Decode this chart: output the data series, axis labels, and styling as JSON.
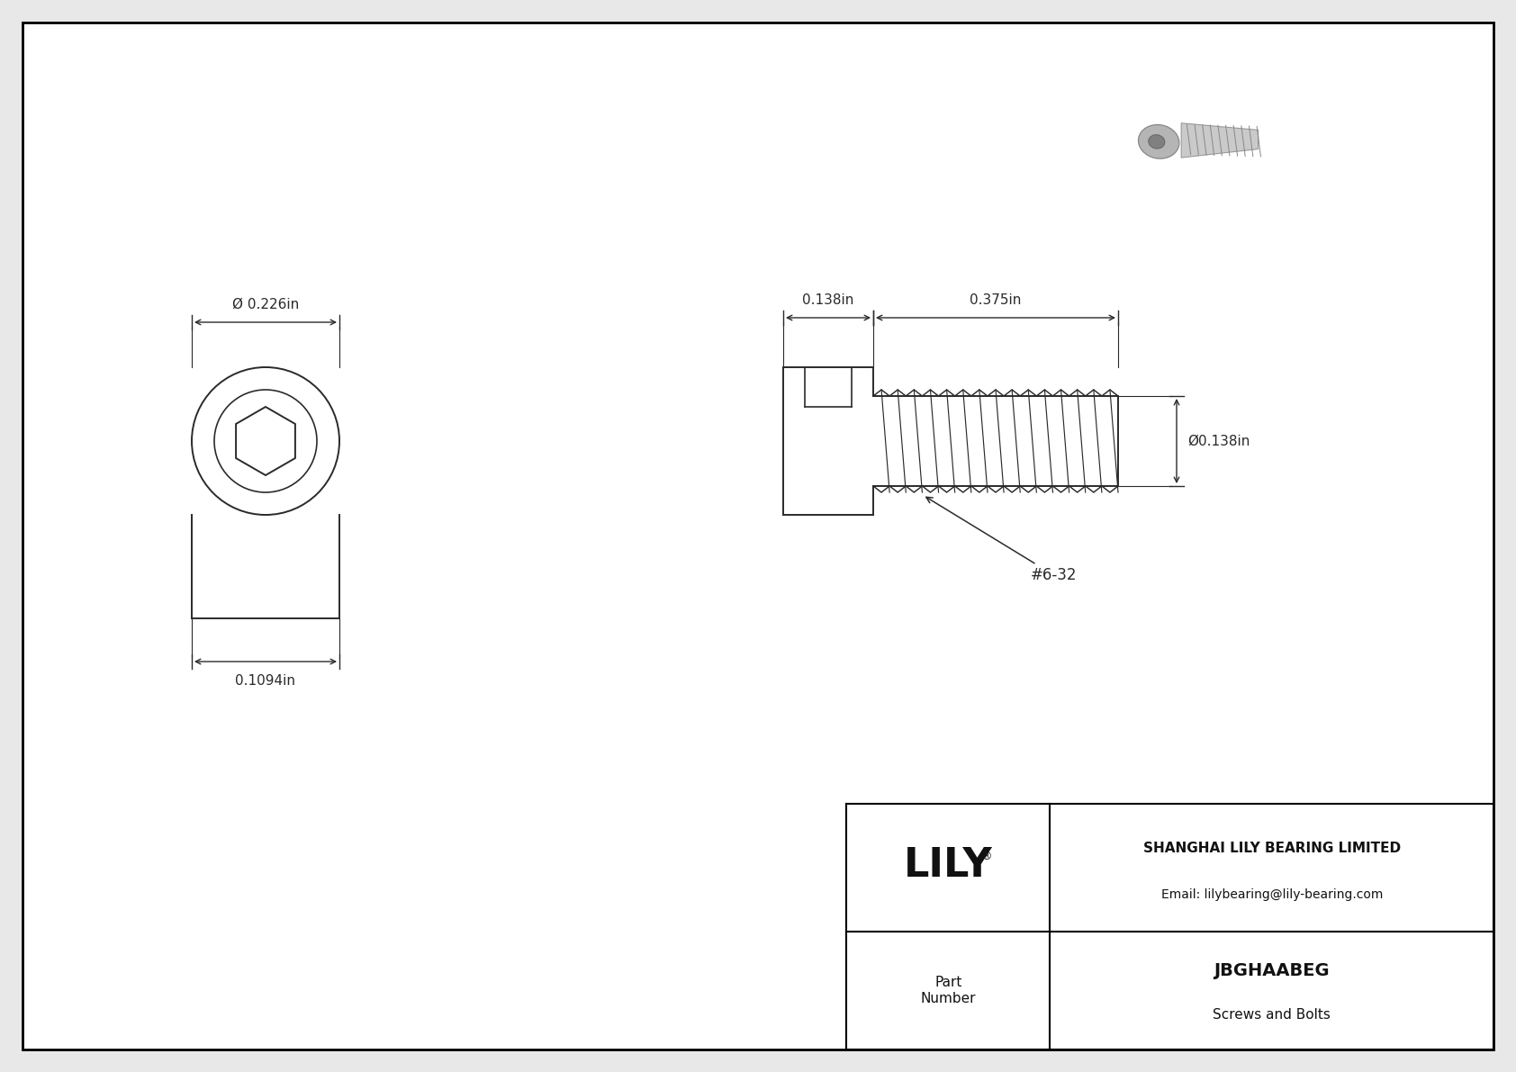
{
  "bg_color": "#e8e8e8",
  "drawing_bg": "#ffffff",
  "border_color": "#000000",
  "line_color": "#2a2a2a",
  "dim_color": "#2a2a2a",
  "title": "JBGHAABEG",
  "subtitle": "Screws and Bolts",
  "company": "SHANGHAI LILY BEARING LIMITED",
  "email": "Email: lilybearing@lily-bearing.com",
  "part_label": "Part\nNumber",
  "logo": "LILY",
  "logo_reg": "®",
  "dim_head_dia": "Ø 0.226in",
  "dim_head_height": "0.1094in",
  "dim_shank_len": "0.375in",
  "dim_head_len": "0.138in",
  "dim_shank_dia": "Ø0.138in",
  "thread_label": "#6-32",
  "outer_border_lw": 2.0,
  "inner_line_lw": 1.4,
  "dim_lw": 1.0,
  "font_size_dim": 11,
  "font_size_logo": 32,
  "font_size_company": 11,
  "font_size_part": 14
}
